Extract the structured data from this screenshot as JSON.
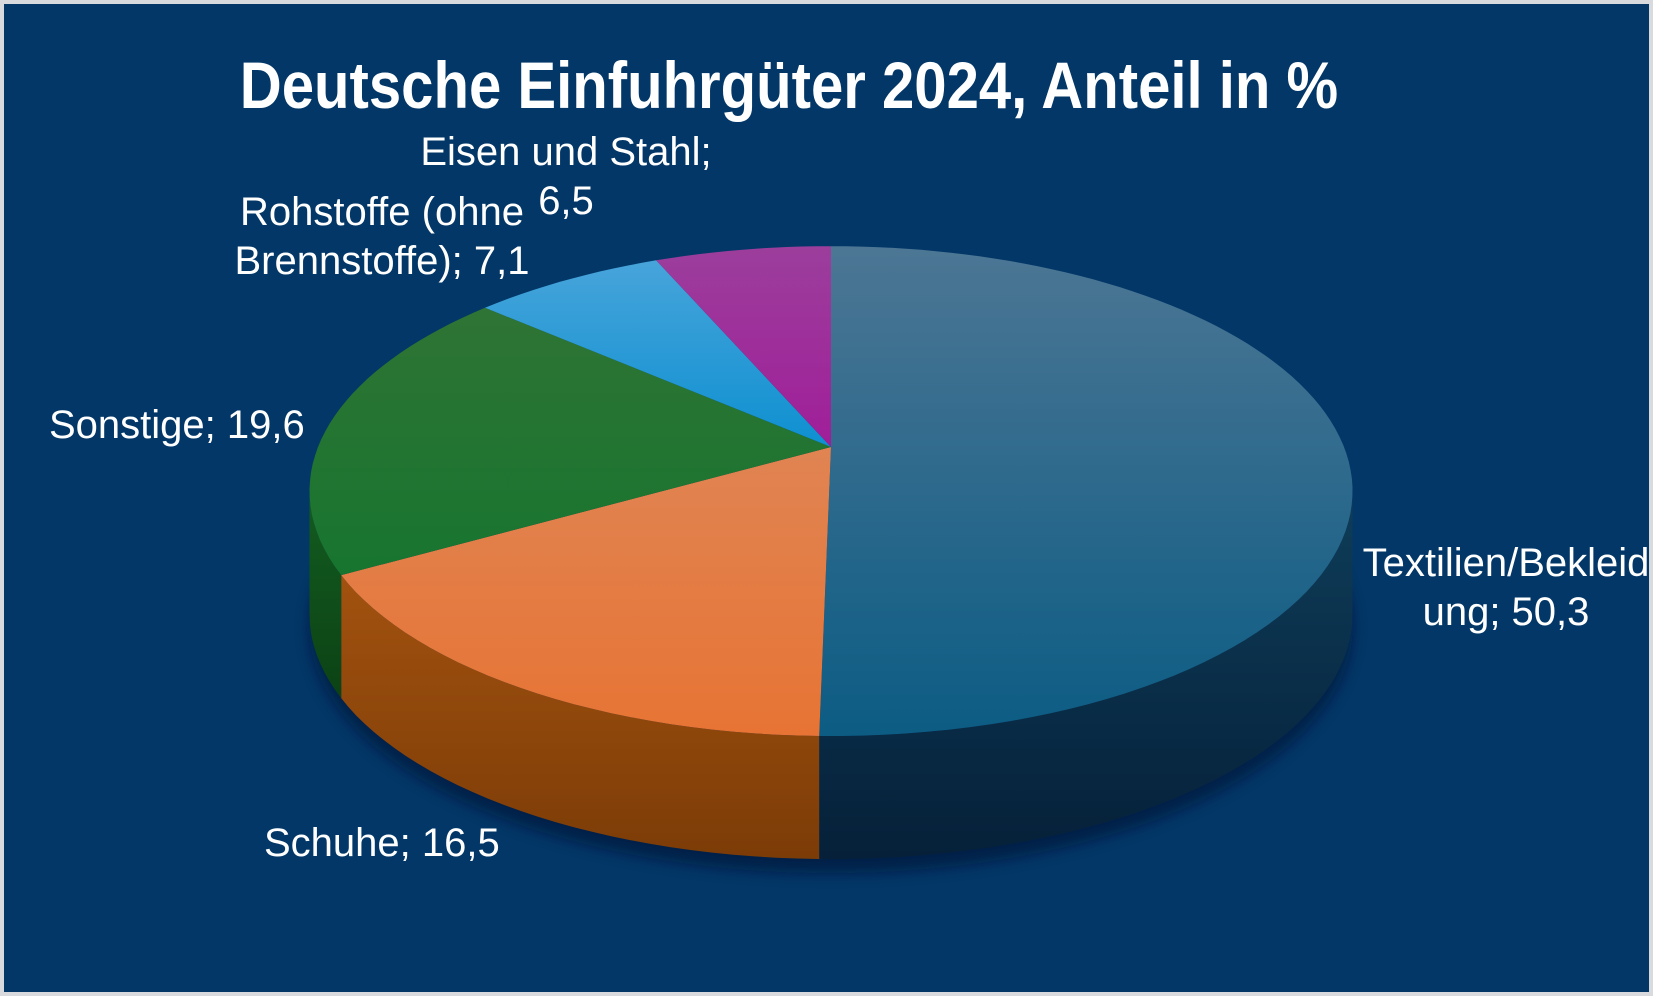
{
  "chart_data": {
    "type": "pie",
    "style": "3d-perspective",
    "title": "Deutsche Einfuhrgüter 2024, Anteil in %",
    "unit": "%",
    "legend": "none",
    "background_color": "#033767",
    "text_color": "#FFFFFF",
    "labels_format": "name; value (comma decimal)",
    "slices": [
      {
        "label": "Textilien/Bekleidung",
        "value": 50.3,
        "value_display": "50,3",
        "label_lines": [
          "Textilien/Bekleid",
          "ung; 50,3"
        ],
        "color_top": [
          "#4C7694",
          "#0C5C84"
        ],
        "color_side": [
          "#0E3D59",
          "#062039"
        ]
      },
      {
        "label": "Schuhe",
        "value": 16.5,
        "value_display": "16,5",
        "label_lines": [
          "Schuhe; 16,5"
        ],
        "color_top": [
          "#E08453",
          "#E77434"
        ],
        "color_side": [
          "#A2520F",
          "#7C3C07"
        ]
      },
      {
        "label": "Sonstige",
        "value": 19.6,
        "value_display": "19,6",
        "label_lines": [
          "Sonstige; 19,6"
        ],
        "color_top": [
          "#2F7434",
          "#17752F"
        ],
        "color_side": [
          "#135C20",
          "#0C4215"
        ]
      },
      {
        "label": "Rohstoffe (ohne Brennstoffe)",
        "value": 7.1,
        "value_display": "7,1",
        "label_lines": [
          "Rohstoffe (ohne",
          "Brennstoffe); 7,1"
        ],
        "color_top": [
          "#47A4DA",
          "#0E90D1"
        ],
        "color_side": [
          "#0F5E8C",
          "#0A4063"
        ]
      },
      {
        "label": "Eisen und Stahl",
        "value": 6.5,
        "value_display": "6,5",
        "label_lines": [
          "Eisen und Stahl;",
          "6,5"
        ],
        "color_top": [
          "#9C3E9C",
          "#A01E99"
        ],
        "color_side": [
          "#6E1266",
          "#4E0C49"
        ]
      }
    ]
  }
}
